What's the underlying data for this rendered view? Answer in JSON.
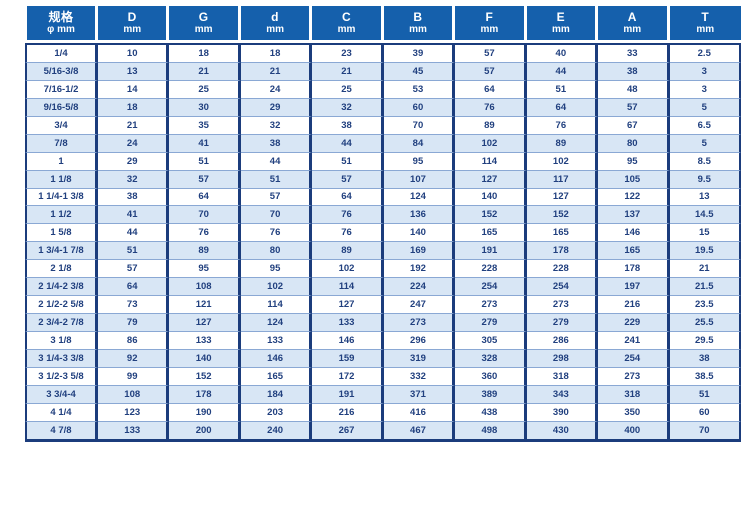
{
  "colors": {
    "header_bg": "#1560ac",
    "header_text": "#ffffff",
    "body_text": "#21407f",
    "row_alt_bg": "#d8e6f5",
    "row_line": "#8aa8d4",
    "border_dark": "#1b3c7c",
    "page_bg": "#ffffff"
  },
  "table": {
    "header": {
      "spec": {
        "title": "规格",
        "unit": "φ mm"
      },
      "columns": [
        {
          "label": "D",
          "unit": "mm"
        },
        {
          "label": "G",
          "unit": "mm"
        },
        {
          "label": "d",
          "unit": "mm"
        },
        {
          "label": "C",
          "unit": "mm"
        },
        {
          "label": "B",
          "unit": "mm"
        },
        {
          "label": "F",
          "unit": "mm"
        },
        {
          "label": "E",
          "unit": "mm"
        },
        {
          "label": "A",
          "unit": "mm"
        },
        {
          "label": "T",
          "unit": "mm"
        }
      ]
    },
    "rows": [
      {
        "spec": "1/4",
        "values": [
          "10",
          "18",
          "18",
          "23",
          "39",
          "57",
          "40",
          "33",
          "2.5"
        ]
      },
      {
        "spec": "5/16-3/8",
        "values": [
          "13",
          "21",
          "21",
          "21",
          "45",
          "57",
          "44",
          "38",
          "3"
        ]
      },
      {
        "spec": "7/16-1/2",
        "values": [
          "14",
          "25",
          "24",
          "25",
          "53",
          "64",
          "51",
          "48",
          "3"
        ]
      },
      {
        "spec": "9/16-5/8",
        "values": [
          "18",
          "30",
          "29",
          "32",
          "60",
          "76",
          "64",
          "57",
          "5"
        ]
      },
      {
        "spec": "3/4",
        "values": [
          "21",
          "35",
          "32",
          "38",
          "70",
          "89",
          "76",
          "67",
          "6.5"
        ]
      },
      {
        "spec": "7/8",
        "values": [
          "24",
          "41",
          "38",
          "44",
          "84",
          "102",
          "89",
          "80",
          "5"
        ]
      },
      {
        "spec": "1",
        "values": [
          "29",
          "51",
          "44",
          "51",
          "95",
          "114",
          "102",
          "95",
          "8.5"
        ]
      },
      {
        "spec": "1 1/8",
        "values": [
          "32",
          "57",
          "51",
          "57",
          "107",
          "127",
          "117",
          "105",
          "9.5"
        ]
      },
      {
        "spec": "1 1/4-1 3/8",
        "values": [
          "38",
          "64",
          "57",
          "64",
          "124",
          "140",
          "127",
          "122",
          "13"
        ]
      },
      {
        "spec": "1 1/2",
        "values": [
          "41",
          "70",
          "70",
          "76",
          "136",
          "152",
          "152",
          "137",
          "14.5"
        ]
      },
      {
        "spec": "1 5/8",
        "values": [
          "44",
          "76",
          "76",
          "76",
          "140",
          "165",
          "165",
          "146",
          "15"
        ]
      },
      {
        "spec": "1 3/4-1 7/8",
        "values": [
          "51",
          "89",
          "80",
          "89",
          "169",
          "191",
          "178",
          "165",
          "19.5"
        ]
      },
      {
        "spec": "2 1/8",
        "values": [
          "57",
          "95",
          "95",
          "102",
          "192",
          "228",
          "228",
          "178",
          "21"
        ]
      },
      {
        "spec": "2 1/4-2 3/8",
        "values": [
          "64",
          "108",
          "102",
          "114",
          "224",
          "254",
          "254",
          "197",
          "21.5"
        ]
      },
      {
        "spec": "2 1/2-2 5/8",
        "values": [
          "73",
          "121",
          "114",
          "127",
          "247",
          "273",
          "273",
          "216",
          "23.5"
        ]
      },
      {
        "spec": "2 3/4-2 7/8",
        "values": [
          "79",
          "127",
          "124",
          "133",
          "273",
          "279",
          "279",
          "229",
          "25.5"
        ]
      },
      {
        "spec": "3 1/8",
        "values": [
          "86",
          "133",
          "133",
          "146",
          "296",
          "305",
          "286",
          "241",
          "29.5"
        ]
      },
      {
        "spec": "3 1/4-3 3/8",
        "values": [
          "92",
          "140",
          "146",
          "159",
          "319",
          "328",
          "298",
          "254",
          "38"
        ]
      },
      {
        "spec": "3 1/2-3 5/8",
        "values": [
          "99",
          "152",
          "165",
          "172",
          "332",
          "360",
          "318",
          "273",
          "38.5"
        ]
      },
      {
        "spec": "3 3/4-4",
        "values": [
          "108",
          "178",
          "184",
          "191",
          "371",
          "389",
          "343",
          "318",
          "51"
        ]
      },
      {
        "spec": "4 1/4",
        "values": [
          "123",
          "190",
          "203",
          "216",
          "416",
          "438",
          "390",
          "350",
          "60"
        ]
      },
      {
        "spec": "4 7/8",
        "values": [
          "133",
          "200",
          "240",
          "267",
          "467",
          "498",
          "430",
          "400",
          "70"
        ]
      }
    ]
  }
}
